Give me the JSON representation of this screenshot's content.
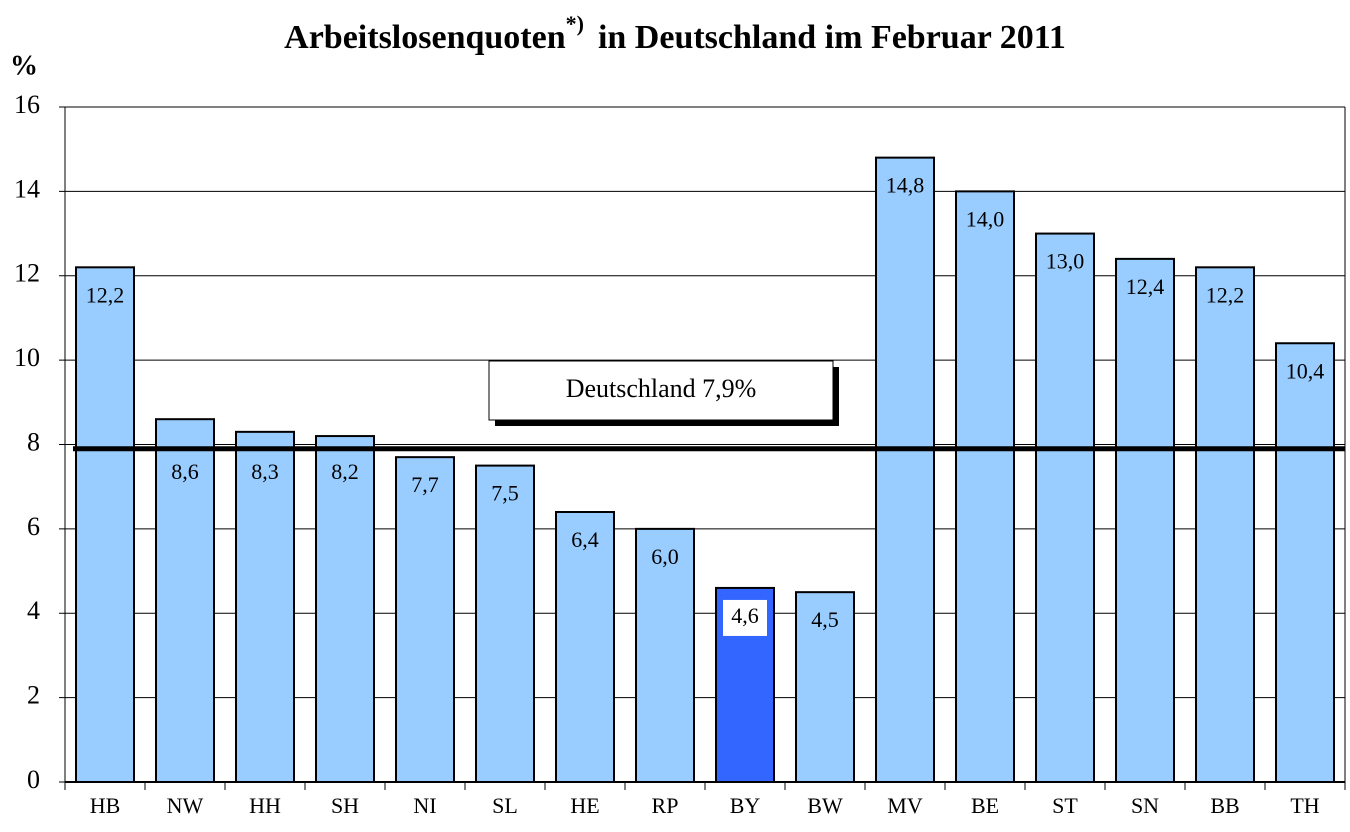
{
  "chart_data": {
    "type": "bar",
    "title": "Arbeitslosenquoten",
    "title_mark": "*)",
    "title_rest": "in Deutschland im Februar 2011",
    "y_label": "%",
    "categories": [
      "HB",
      "NW",
      "HH",
      "SH",
      "NI",
      "SL",
      "HE",
      "RP",
      "BY",
      "BW",
      "MV",
      "BE",
      "ST",
      "SN",
      "BB",
      "TH"
    ],
    "values": [
      12.2,
      8.6,
      8.3,
      8.2,
      7.7,
      7.5,
      6.4,
      6.0,
      4.6,
      4.5,
      14.8,
      14.0,
      13.0,
      12.4,
      12.2,
      10.4
    ],
    "value_labels": [
      "12,2",
      "8,6",
      "8,3",
      "8,2",
      "7,7",
      "7,5",
      "6,4",
      "6,0",
      "4,6",
      "4,5",
      "14,8",
      "14,0",
      "13,0",
      "12,4",
      "12,2",
      "10,4"
    ],
    "colors": [
      "#99ccff",
      "#99ccff",
      "#99ccff",
      "#99ccff",
      "#99ccff",
      "#99ccff",
      "#99ccff",
      "#99ccff",
      "#3366ff",
      "#99ccff",
      "#99ccff",
      "#99ccff",
      "#99ccff",
      "#99ccff",
      "#99ccff",
      "#99ccff"
    ],
    "reference": {
      "value": 7.9,
      "label": "Deutschland 7,9%"
    },
    "ylim": [
      0,
      16
    ],
    "yticks": [
      0,
      2,
      4,
      6,
      8,
      10,
      12,
      14,
      16
    ],
    "grid": true
  }
}
